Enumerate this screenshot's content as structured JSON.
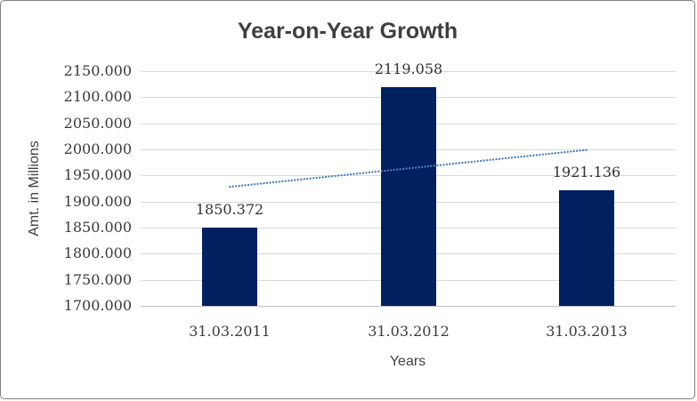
{
  "chart_data": {
    "type": "bar",
    "title": "Year-on-Year Growth",
    "xlabel": "Years",
    "ylabel": "Amt. in Millions",
    "categories": [
      "31.03.2011",
      "31.03.2012",
      "31.03.2013"
    ],
    "values": [
      1850.372,
      2119.058,
      1921.136
    ],
    "data_labels": [
      "1850.372",
      "2119.058",
      "1921.136"
    ],
    "ylim": [
      1700,
      2150
    ],
    "ytick_step": 50,
    "ytick_labels": [
      "2150.000",
      "2100.000",
      "2050.000",
      "2000.000",
      "1950.000",
      "1900.000",
      "1850.000",
      "1800.000",
      "1750.000",
      "1700.000"
    ],
    "grid": "horizontal-only",
    "legend": "none",
    "trendline": {
      "type": "linear",
      "style": "dotted",
      "start_value": 1928.2,
      "end_value": 1998.9,
      "color": "#4a7ebb"
    },
    "colors": {
      "bar": "#002060",
      "gridline": "#d9d9d9",
      "axis_line": "#bfbfbf",
      "text": "#3a3a3a",
      "title": "#3f3f3f"
    }
  }
}
